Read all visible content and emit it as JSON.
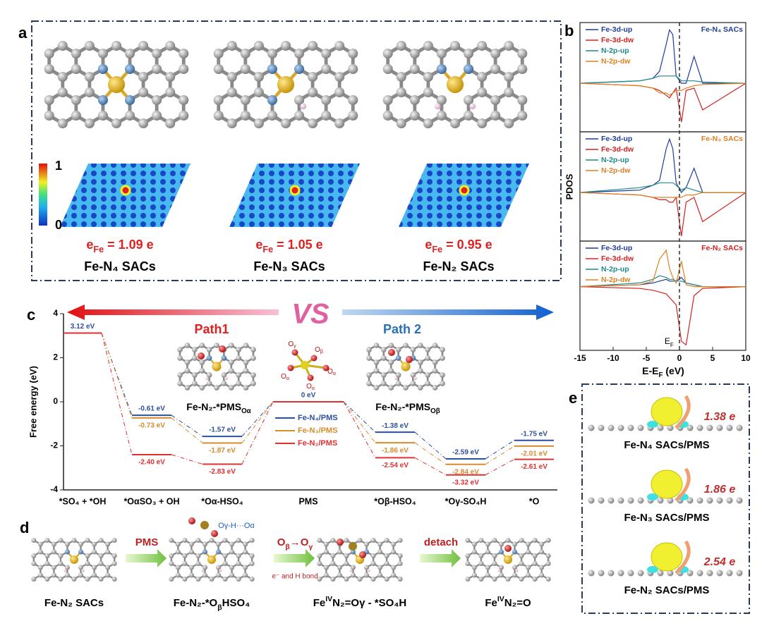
{
  "panel_a": {
    "label": "a",
    "colorbar_ticks": [
      0,
      1
    ],
    "structures": [
      {
        "charge": {
          "main": "e",
          "sub": "Fe",
          "rest": " = 1.09 e"
        },
        "name": "Fe-N₄ SACs"
      },
      {
        "charge": {
          "main": "e",
          "sub": "Fe",
          "rest": " = 1.05 e"
        },
        "name": "Fe-N₃ SACs"
      },
      {
        "charge": {
          "main": "e",
          "sub": "Fe",
          "rest": " = 0.95 e"
        },
        "name": "Fe-N₂ SACs"
      }
    ]
  },
  "panel_b": {
    "label": "b",
    "type": "line",
    "ylabel": "PDOS",
    "xlabel": {
      "main": "E-E",
      "sub": "F",
      "rest": " (eV)"
    },
    "fermi_label": {
      "main": "E",
      "sub": "F"
    },
    "xlim": [
      -15,
      10
    ],
    "xticks": [
      -15,
      -10,
      -5,
      0,
      5,
      10
    ],
    "x": [
      -15,
      -6,
      -4,
      -3,
      -2,
      -1.5,
      -1,
      -0.5,
      0.3,
      1,
      2.2,
      3.5,
      10
    ],
    "subplots": [
      {
        "title": "Fe-N₄ SACs",
        "title_color": "#1f3c99",
        "ylim": [
          -2,
          2.5
        ],
        "series": [
          {
            "name": "Fe-3d-up",
            "color": "#1f3c99",
            "values": [
              0,
              0.1,
              0.2,
              0.5,
              1.6,
              2.2,
              2.0,
              0.3,
              0,
              0,
              1.1,
              0,
              0
            ]
          },
          {
            "name": "Fe-3d-dw",
            "color": "#d62020",
            "values": [
              0,
              -0.1,
              -0.2,
              -0.3,
              -0.5,
              -0.6,
              -0.4,
              -0.2,
              -1.6,
              -0.3,
              -0.2,
              -1.1,
              0
            ]
          },
          {
            "name": "N-2p-up",
            "color": "#1f8a8a",
            "values": [
              0,
              0.1,
              0.2,
              0.3,
              0.3,
              0.3,
              0.3,
              0.3,
              0.1,
              0.1,
              0.1,
              0.05,
              0
            ]
          },
          {
            "name": "N-2p-dw",
            "color": "#e08020",
            "values": [
              0,
              -0.1,
              -0.2,
              -0.4,
              -0.4,
              -0.5,
              -0.4,
              -0.3,
              -0.3,
              -0.2,
              -0.1,
              -0.05,
              0
            ]
          }
        ]
      },
      {
        "title": "Fe-N₃ SACs",
        "title_color": "#e08020",
        "ylim": [
          -2,
          2.5
        ],
        "series": [
          {
            "name": "Fe-3d-up",
            "color": "#1f3c99",
            "values": [
              0,
              0.1,
              0.3,
              0.5,
              1.8,
              2.2,
              1.8,
              0.4,
              0,
              0.2,
              1.0,
              0,
              0
            ]
          },
          {
            "name": "Fe-3d-dw",
            "color": "#d62020",
            "values": [
              0,
              -0.1,
              -0.2,
              -0.3,
              -0.3,
              -0.4,
              -0.4,
              -0.2,
              -1.8,
              -0.4,
              -0.2,
              -1.2,
              0
            ]
          },
          {
            "name": "N-2p-up",
            "color": "#1f8a8a",
            "values": [
              0,
              0.2,
              0.3,
              0.4,
              0.4,
              0.4,
              0.4,
              0.3,
              0.1,
              0.2,
              0.1,
              0,
              0
            ]
          },
          {
            "name": "N-2p-dw",
            "color": "#e08020",
            "values": [
              0,
              -0.1,
              -0.2,
              -0.2,
              -0.2,
              -0.2,
              -0.2,
              -0.2,
              -0.2,
              -0.1,
              -0.1,
              0,
              0
            ]
          }
        ]
      },
      {
        "title": "Fe-N₂ SACs",
        "title_color": "#d62020",
        "ylim": [
          -3.5,
          2.5
        ],
        "series": [
          {
            "name": "Fe-3d-up",
            "color": "#1f3c99",
            "values": [
              0,
              0.1,
              0.2,
              0.3,
              0.4,
              0.3,
              0.3,
              0.3,
              0.5,
              0.2,
              0.1,
              0,
              0
            ]
          },
          {
            "name": "Fe-3d-dw",
            "color": "#d62020",
            "values": [
              0,
              -0.1,
              -0.2,
              -0.3,
              -0.4,
              -0.6,
              -0.8,
              -1.0,
              -3.0,
              -3.2,
              -0.5,
              -0.1,
              0
            ]
          },
          {
            "name": "N-2p-up",
            "color": "#1f8a8a",
            "values": [
              0,
              0.2,
              0.4,
              0.6,
              0.5,
              0.4,
              0.4,
              0.3,
              0.3,
              0.2,
              0.1,
              0,
              0
            ]
          },
          {
            "name": "N-2p-dw",
            "color": "#e08020",
            "values": [
              0,
              0.1,
              0.3,
              1.5,
              2.0,
              1.0,
              0.5,
              0.2,
              1.4,
              0.1,
              0,
              0,
              0
            ]
          }
        ]
      }
    ]
  },
  "panel_c": {
    "label": "c",
    "type": "line",
    "ylabel": "Free energy (eV)",
    "ylim": [
      -4,
      4
    ],
    "yticks": [
      -4,
      -2,
      0,
      2,
      4
    ],
    "vs": "VS",
    "path1": "Path1",
    "path2": "Path 2",
    "inset1": {
      "main": "Fe-N₂-*PMS",
      "sub": "Oα"
    },
    "inset2": {
      "main": "Fe-N₂-*PMS",
      "sub": "Oβ"
    },
    "pms_atoms": [
      {
        "main": "O",
        "sub": "γ"
      },
      {
        "main": "O",
        "sub": "β"
      },
      {
        "main": "O",
        "sub": "α"
      },
      {
        "main": "O",
        "sub": "α"
      },
      {
        "main": "O",
        "sub": "α"
      }
    ],
    "categories": [
      "*SO₄ + *OH",
      "*OαSO₃ + OH",
      "*Oα-HSO₄",
      "PMS",
      "*Oβ-HSO₄",
      "*Oγ-SO₄H",
      "*O"
    ],
    "series": [
      {
        "name": "Fe-N₄/PMS",
        "color": "#2b4fa0",
        "values": [
          3.12,
          -0.61,
          -1.57,
          0,
          -1.38,
          -2.59,
          -1.75
        ],
        "value_labels": [
          "3.12 eV",
          "-0.61 eV",
          "-1.57 eV",
          "0 eV",
          "-1.38 eV",
          "-2.59 eV",
          "-1.75 eV"
        ]
      },
      {
        "name": "Fe-N₃/PMS",
        "color": "#d98a2b",
        "values": [
          3.12,
          -0.73,
          -1.87,
          0,
          -1.86,
          -2.84,
          -2.01
        ],
        "value_labels": [
          null,
          "-0.73 eV",
          "-1.87 eV",
          null,
          "-1.86 eV",
          "-2.84 eV",
          "-2.01 eV"
        ]
      },
      {
        "name": "Fe-N₂/PMS",
        "color": "#e03030",
        "values": [
          3.12,
          -2.4,
          -2.83,
          0,
          -2.54,
          -3.32,
          -2.61
        ],
        "value_labels": [
          null,
          "-2.40 eV",
          "-2.83 eV",
          null,
          "-2.54 eV",
          "-3.32 eV",
          "-2.61 eV"
        ]
      }
    ]
  },
  "panel_d": {
    "label": "d",
    "steps": [
      "PMS",
      {
        "main": "O",
        "sub": "β",
        "mid": "→O",
        "sub2": "γ"
      },
      "detach"
    ],
    "step_note": "e⁻ and H bond",
    "hbond": "Oγ-H···Oα",
    "captions": [
      "Fe-N₂ SACs",
      {
        "main": "Fe-N₂-*O",
        "sub": "β",
        "rest": "HSO₄"
      },
      {
        "main": "Fe",
        "sup": "IV",
        "rest": "N₂=Oγ - *SO₄H"
      },
      {
        "main": "Fe",
        "sup": "IV",
        "rest": "N₂=O"
      }
    ]
  },
  "panel_e": {
    "label": "e",
    "items": [
      {
        "transfer": "1.38 e",
        "name": "Fe-N₄ SACs/PMS"
      },
      {
        "transfer": "1.86 e",
        "name": "Fe-N₃ SACs/PMS"
      },
      {
        "transfer": "2.54 e",
        "name": "Fe-N₂ SACs/PMS"
      }
    ]
  }
}
